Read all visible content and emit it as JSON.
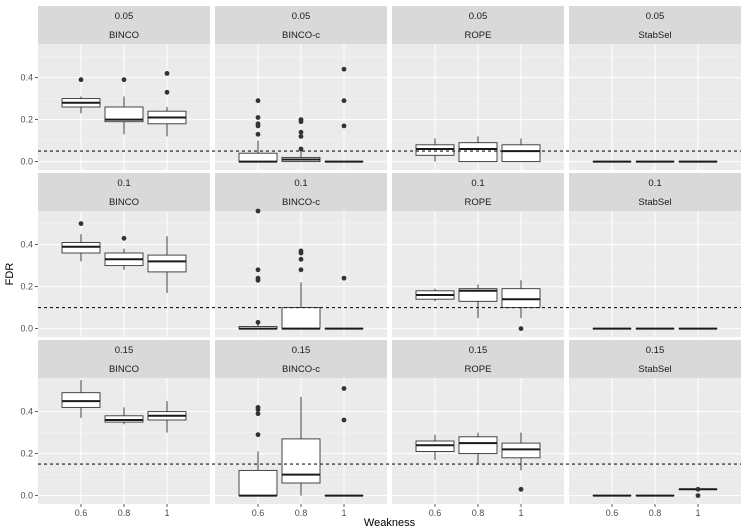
{
  "chart_data": {
    "type": "boxplot",
    "xlabel": "Weakness",
    "ylabel": "FDR",
    "categories": [
      "0.6",
      "0.8",
      "1"
    ],
    "ylim": [
      -0.04,
      0.56
    ],
    "yticks": [
      0.0,
      0.2,
      0.4
    ],
    "ytick_labels": [
      "0.0",
      "0.2",
      "0.4"
    ],
    "rows": [
      {
        "threshold": 0.05,
        "strip_label": "0.05"
      },
      {
        "threshold": 0.1,
        "strip_label": "0.1"
      },
      {
        "threshold": 0.15,
        "strip_label": "0.15"
      }
    ],
    "columns": [
      "BINCO",
      "BINCO-c",
      "ROPE",
      "StabSel"
    ],
    "panels": [
      {
        "row": 0,
        "col": 0,
        "boxes": [
          {
            "low": 0.23,
            "q1": 0.26,
            "median": 0.28,
            "q3": 0.3,
            "high": 0.31,
            "outliers": [
              0.39
            ]
          },
          {
            "low": 0.13,
            "q1": 0.19,
            "median": 0.2,
            "q3": 0.26,
            "high": 0.31,
            "outliers": [
              0.39
            ]
          },
          {
            "low": 0.12,
            "q1": 0.18,
            "median": 0.21,
            "q3": 0.24,
            "high": 0.26,
            "outliers": [
              0.33,
              0.42
            ]
          }
        ]
      },
      {
        "row": 0,
        "col": 1,
        "boxes": [
          {
            "low": 0.0,
            "q1": 0.0,
            "median": 0.0,
            "q3": 0.04,
            "high": 0.1,
            "outliers": [
              0.13,
              0.17,
              0.18,
              0.21,
              0.29
            ]
          },
          {
            "low": 0.0,
            "q1": 0.0,
            "median": 0.01,
            "q3": 0.02,
            "high": 0.05,
            "outliers": [
              0.06,
              0.12,
              0.14,
              0.19,
              0.2
            ]
          },
          {
            "low": 0.0,
            "q1": 0.0,
            "median": 0.0,
            "q3": 0.0,
            "high": 0.0,
            "outliers": [
              0.17,
              0.29,
              0.44
            ]
          }
        ]
      },
      {
        "row": 0,
        "col": 2,
        "boxes": [
          {
            "low": 0.0,
            "q1": 0.03,
            "median": 0.06,
            "q3": 0.08,
            "high": 0.11,
            "outliers": []
          },
          {
            "low": 0.0,
            "q1": 0.0,
            "median": 0.06,
            "q3": 0.09,
            "high": 0.12,
            "outliers": []
          },
          {
            "low": 0.0,
            "q1": 0.0,
            "median": 0.05,
            "q3": 0.08,
            "high": 0.11,
            "outliers": []
          }
        ]
      },
      {
        "row": 0,
        "col": 3,
        "boxes": [
          {
            "low": 0.0,
            "q1": 0.0,
            "median": 0.0,
            "q3": 0.0,
            "high": 0.0,
            "outliers": []
          },
          {
            "low": 0.0,
            "q1": 0.0,
            "median": 0.0,
            "q3": 0.0,
            "high": 0.0,
            "outliers": []
          },
          {
            "low": 0.0,
            "q1": 0.0,
            "median": 0.0,
            "q3": 0.0,
            "high": 0.0,
            "outliers": []
          }
        ]
      },
      {
        "row": 1,
        "col": 0,
        "boxes": [
          {
            "low": 0.32,
            "q1": 0.36,
            "median": 0.39,
            "q3": 0.41,
            "high": 0.45,
            "outliers": [
              0.5
            ]
          },
          {
            "low": 0.28,
            "q1": 0.3,
            "median": 0.33,
            "q3": 0.36,
            "high": 0.38,
            "outliers": [
              0.43
            ]
          },
          {
            "low": 0.17,
            "q1": 0.27,
            "median": 0.32,
            "q3": 0.35,
            "high": 0.44,
            "outliers": []
          }
        ]
      },
      {
        "row": 1,
        "col": 1,
        "boxes": [
          {
            "low": 0.0,
            "q1": 0.0,
            "median": 0.0,
            "q3": 0.01,
            "high": 0.02,
            "outliers": [
              0.03,
              0.23,
              0.24,
              0.28,
              0.56
            ]
          },
          {
            "low": 0.0,
            "q1": 0.0,
            "median": 0.0,
            "q3": 0.1,
            "high": 0.22,
            "outliers": [
              0.28,
              0.33,
              0.36,
              0.37
            ]
          },
          {
            "low": 0.0,
            "q1": 0.0,
            "median": 0.0,
            "q3": 0.0,
            "high": 0.0,
            "outliers": [
              0.24
            ]
          }
        ]
      },
      {
        "row": 1,
        "col": 2,
        "boxes": [
          {
            "low": 0.13,
            "q1": 0.14,
            "median": 0.16,
            "q3": 0.18,
            "high": 0.19,
            "outliers": []
          },
          {
            "low": 0.05,
            "q1": 0.13,
            "median": 0.18,
            "q3": 0.19,
            "high": 0.21,
            "outliers": []
          },
          {
            "low": 0.05,
            "q1": 0.1,
            "median": 0.14,
            "q3": 0.19,
            "high": 0.23,
            "outliers": [
              0.0
            ]
          }
        ]
      },
      {
        "row": 1,
        "col": 3,
        "boxes": [
          {
            "low": 0.0,
            "q1": 0.0,
            "median": 0.0,
            "q3": 0.0,
            "high": 0.0,
            "outliers": []
          },
          {
            "low": 0.0,
            "q1": 0.0,
            "median": 0.0,
            "q3": 0.0,
            "high": 0.0,
            "outliers": []
          },
          {
            "low": 0.0,
            "q1": 0.0,
            "median": 0.0,
            "q3": 0.0,
            "high": 0.0,
            "outliers": []
          }
        ]
      },
      {
        "row": 2,
        "col": 0,
        "boxes": [
          {
            "low": 0.37,
            "q1": 0.42,
            "median": 0.45,
            "q3": 0.49,
            "high": 0.55,
            "outliers": []
          },
          {
            "low": 0.34,
            "q1": 0.35,
            "median": 0.36,
            "q3": 0.38,
            "high": 0.42,
            "outliers": []
          },
          {
            "low": 0.3,
            "q1": 0.36,
            "median": 0.38,
            "q3": 0.4,
            "high": 0.45,
            "outliers": []
          }
        ]
      },
      {
        "row": 2,
        "col": 1,
        "boxes": [
          {
            "low": 0.0,
            "q1": 0.0,
            "median": 0.0,
            "q3": 0.12,
            "high": 0.21,
            "outliers": [
              0.29,
              0.39,
              0.41,
              0.42
            ]
          },
          {
            "low": 0.0,
            "q1": 0.06,
            "median": 0.1,
            "q3": 0.27,
            "high": 0.47,
            "outliers": []
          },
          {
            "low": 0.0,
            "q1": 0.0,
            "median": 0.0,
            "q3": 0.0,
            "high": 0.0,
            "outliers": [
              0.36,
              0.51
            ]
          }
        ]
      },
      {
        "row": 2,
        "col": 2,
        "boxes": [
          {
            "low": 0.17,
            "q1": 0.21,
            "median": 0.24,
            "q3": 0.26,
            "high": 0.29,
            "outliers": []
          },
          {
            "low": 0.15,
            "q1": 0.2,
            "median": 0.25,
            "q3": 0.28,
            "high": 0.3,
            "outliers": []
          },
          {
            "low": 0.12,
            "q1": 0.18,
            "median": 0.22,
            "q3": 0.25,
            "high": 0.3,
            "outliers": [
              0.03
            ]
          }
        ]
      },
      {
        "row": 2,
        "col": 3,
        "boxes": [
          {
            "low": 0.0,
            "q1": 0.0,
            "median": 0.0,
            "q3": 0.0,
            "high": 0.0,
            "outliers": []
          },
          {
            "low": 0.0,
            "q1": 0.0,
            "median": 0.0,
            "q3": 0.0,
            "high": 0.0,
            "outliers": []
          },
          {
            "low": 0.03,
            "q1": 0.03,
            "median": 0.03,
            "q3": 0.03,
            "high": 0.03,
            "outliers": [
              0.0,
              0.03
            ]
          }
        ]
      }
    ]
  }
}
